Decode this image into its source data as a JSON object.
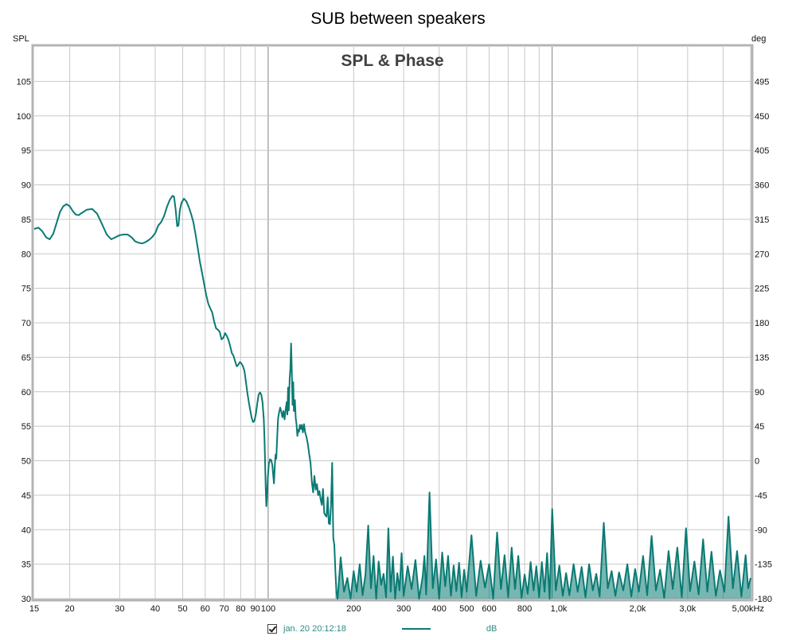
{
  "header": {
    "title": "SUB between speakers"
  },
  "legend": {
    "series_label": "jan. 20 20:12:18",
    "unit": "dB",
    "checked": true
  },
  "colors": {
    "series": "#0a7a73",
    "grid": "#c8c8c8",
    "major_grid": "#808080",
    "frame": "#b4b4b4"
  },
  "chart_data": {
    "type": "line",
    "title": "SPL & Phase",
    "x_scale": "log",
    "xlim": [
      15,
      5000
    ],
    "ylim": [
      30,
      110
    ],
    "y2lim": [
      -180,
      540
    ],
    "ylabel": "SPL",
    "y2label": "deg",
    "grid": true,
    "x_tick_labels": [
      {
        "v": 15,
        "t": "15"
      },
      {
        "v": 20,
        "t": "20"
      },
      {
        "v": 30,
        "t": "30"
      },
      {
        "v": 40,
        "t": "40"
      },
      {
        "v": 50,
        "t": "50"
      },
      {
        "v": 60,
        "t": "60"
      },
      {
        "v": 70,
        "t": "70"
      },
      {
        "v": 80,
        "t": "80"
      },
      {
        "v": 90,
        "t": "90"
      },
      {
        "v": 100,
        "t": "100"
      },
      {
        "v": 200,
        "t": "200"
      },
      {
        "v": 300,
        "t": "300"
      },
      {
        "v": 400,
        "t": "400"
      },
      {
        "v": 500,
        "t": "500"
      },
      {
        "v": 600,
        "t": "600"
      },
      {
        "v": 800,
        "t": "800"
      },
      {
        "v": 1000,
        "t": "1,0k"
      },
      {
        "v": 2000,
        "t": "2,0k"
      },
      {
        "v": 3000,
        "t": "3,0k"
      },
      {
        "v": 5000,
        "t": "5,00kHz"
      }
    ],
    "y_ticks": [
      30,
      35,
      40,
      45,
      50,
      55,
      60,
      65,
      70,
      75,
      80,
      85,
      90,
      95,
      100,
      105
    ],
    "y2_ticks": [
      -180,
      -135,
      -90,
      -45,
      0,
      45,
      90,
      135,
      180,
      225,
      270,
      315,
      360,
      405,
      450,
      495
    ],
    "series": [
      {
        "name": "jan. 20 20:12:18",
        "points": [
          [
            15,
            83.6
          ],
          [
            15.5,
            83.8
          ],
          [
            16,
            83.3
          ],
          [
            16.5,
            82.4
          ],
          [
            17,
            82.1
          ],
          [
            17.5,
            82.9
          ],
          [
            18,
            84.5
          ],
          [
            18.5,
            86.1
          ],
          [
            19,
            86.9
          ],
          [
            19.5,
            87.2
          ],
          [
            20,
            86.9
          ],
          [
            20.5,
            86.2
          ],
          [
            21,
            85.7
          ],
          [
            21.5,
            85.6
          ],
          [
            22,
            85.9
          ],
          [
            23,
            86.4
          ],
          [
            24,
            86.5
          ],
          [
            25,
            85.8
          ],
          [
            26,
            84.3
          ],
          [
            27,
            82.8
          ],
          [
            28,
            82.1
          ],
          [
            29,
            82.4
          ],
          [
            30,
            82.7
          ],
          [
            31,
            82.8
          ],
          [
            32,
            82.8
          ],
          [
            33,
            82.4
          ],
          [
            34,
            81.8
          ],
          [
            35,
            81.6
          ],
          [
            36,
            81.5
          ],
          [
            37,
            81.7
          ],
          [
            38,
            82.0
          ],
          [
            39,
            82.4
          ],
          [
            40,
            83.0
          ],
          [
            41,
            84.1
          ],
          [
            42,
            84.6
          ],
          [
            43,
            85.5
          ],
          [
            44,
            86.8
          ],
          [
            45,
            87.8
          ],
          [
            46,
            88.4
          ],
          [
            46.6,
            88.3
          ],
          [
            47.2,
            86.5
          ],
          [
            47.8,
            84.0
          ],
          [
            48.3,
            84.1
          ],
          [
            48.8,
            86.2
          ],
          [
            49.5,
            87.4
          ],
          [
            50.5,
            88.0
          ],
          [
            51.5,
            87.6
          ],
          [
            52.5,
            86.8
          ],
          [
            53.5,
            85.8
          ],
          [
            54.5,
            84.6
          ],
          [
            55.5,
            82.8
          ],
          [
            56.5,
            80.8
          ],
          [
            57.5,
            78.8
          ],
          [
            58.5,
            77.2
          ],
          [
            59.5,
            75.6
          ],
          [
            60.5,
            74.0
          ],
          [
            61.5,
            72.8
          ],
          [
            62.5,
            72.1
          ],
          [
            63.5,
            71.5
          ],
          [
            64.5,
            70.2
          ],
          [
            65.5,
            69.2
          ],
          [
            66.5,
            69.0
          ],
          [
            67.5,
            68.7
          ],
          [
            68.5,
            67.6
          ],
          [
            69.5,
            67.8
          ],
          [
            70.5,
            68.5
          ],
          [
            71.5,
            68.1
          ],
          [
            72.5,
            67.5
          ],
          [
            73.5,
            66.6
          ],
          [
            74.5,
            65.6
          ],
          [
            75.5,
            65.2
          ],
          [
            76.5,
            64.4
          ],
          [
            77.5,
            63.7
          ],
          [
            78.5,
            63.9
          ],
          [
            79.5,
            64.3
          ],
          [
            80.5,
            64.1
          ],
          [
            81.5,
            63.7
          ],
          [
            82.5,
            63.0
          ],
          [
            83.5,
            61.4
          ],
          [
            84.5,
            59.8
          ],
          [
            85.5,
            58.5
          ],
          [
            86.5,
            57.3
          ],
          [
            87.5,
            56.2
          ],
          [
            88.5,
            55.6
          ],
          [
            89.5,
            55.8
          ],
          [
            90.5,
            56.8
          ],
          [
            91.5,
            58.3
          ],
          [
            92.5,
            59.5
          ],
          [
            93.5,
            59.9
          ],
          [
            94.5,
            59.6
          ],
          [
            95.5,
            58.5
          ],
          [
            96.5,
            56.0
          ],
          [
            97,
            53.4
          ],
          [
            97.5,
            50.0
          ],
          [
            98,
            46.0
          ],
          [
            98.5,
            43.4
          ],
          [
            99,
            44.8
          ],
          [
            99.7,
            47.6
          ],
          [
            100.5,
            49.5
          ],
          [
            101.5,
            50.2
          ],
          [
            102.5,
            50.1
          ],
          [
            103.5,
            49.3
          ],
          [
            104.2,
            47.8
          ],
          [
            104.8,
            46.7
          ],
          [
            105.5,
            49.2
          ],
          [
            106.2,
            50.9
          ],
          [
            106.8,
            50.3
          ],
          [
            107.5,
            53.0
          ],
          [
            108.3,
            56.1
          ],
          [
            109.2,
            57.0
          ],
          [
            110.2,
            57.7
          ],
          [
            111.2,
            57.1
          ],
          [
            112.2,
            56.3
          ],
          [
            113.2,
            57.2
          ],
          [
            114.2,
            56.0
          ],
          [
            115.2,
            57.4
          ],
          [
            116.2,
            58.5
          ],
          [
            116.8,
            56.7
          ],
          [
            117.5,
            60.6
          ],
          [
            118.2,
            57.3
          ],
          [
            119,
            61.9
          ],
          [
            119.7,
            63.4
          ],
          [
            120.4,
            67.0
          ],
          [
            121.1,
            63.0
          ],
          [
            121.8,
            58.1
          ],
          [
            122.5,
            61.4
          ],
          [
            123.2,
            57.2
          ],
          [
            124.2,
            58.8
          ],
          [
            125,
            56.2
          ],
          [
            125.8,
            55.3
          ],
          [
            126.7,
            53.6
          ],
          [
            127.5,
            54.5
          ],
          [
            128.4,
            54.2
          ],
          [
            129.3,
            55.2
          ],
          [
            130.3,
            54.6
          ],
          [
            131.4,
            55.2
          ],
          [
            132.5,
            54.1
          ],
          [
            133.7,
            55.3
          ],
          [
            135,
            54.1
          ],
          [
            136.5,
            53.4
          ],
          [
            138,
            52.4
          ],
          [
            139.5,
            50.9
          ],
          [
            141,
            49.7
          ],
          [
            142.5,
            46.9
          ],
          [
            144,
            45.4
          ],
          [
            145.5,
            47.8
          ],
          [
            147,
            45.8
          ],
          [
            148.5,
            46.6
          ],
          [
            150,
            45.0
          ],
          [
            151.5,
            45.6
          ],
          [
            153,
            44.4
          ],
          [
            154.5,
            43.6
          ],
          [
            156,
            45.9
          ],
          [
            157.5,
            42.4
          ],
          [
            159,
            42.1
          ],
          [
            160.5,
            41.9
          ],
          [
            162,
            44.7
          ],
          [
            163.5,
            40.9
          ],
          [
            165,
            40.8
          ],
          [
            166.5,
            43.7
          ],
          [
            168,
            49.7
          ],
          [
            169.5,
            38.8
          ],
          [
            171,
            37.8
          ],
          [
            172.5,
            33.8
          ],
          [
            174,
            30.9
          ],
          [
            175.5,
            30.0
          ],
          [
            180,
            36.0
          ],
          [
            185,
            31.0
          ],
          [
            190,
            33.0
          ],
          [
            195,
            30.0
          ],
          [
            200,
            34.0
          ],
          [
            205,
            31.0
          ],
          [
            210,
            35.0
          ],
          [
            215,
            30.5
          ],
          [
            220,
            33.5
          ],
          [
            225,
            40.6
          ],
          [
            230,
            31.5
          ],
          [
            235,
            36.2
          ],
          [
            240,
            30.0
          ],
          [
            245,
            35.4
          ],
          [
            250,
            32.0
          ],
          [
            255,
            33.6
          ],
          [
            260,
            30.2
          ],
          [
            265,
            40.2
          ],
          [
            270,
            31.0
          ],
          [
            275,
            36.1
          ],
          [
            280,
            30.0
          ],
          [
            285,
            33.7
          ],
          [
            290,
            31.2
          ],
          [
            295,
            36.6
          ],
          [
            300,
            30.4
          ],
          [
            310,
            34.7
          ],
          [
            320,
            31.4
          ],
          [
            330,
            35.6
          ],
          [
            340,
            30.0
          ],
          [
            350,
            33.2
          ],
          [
            355,
            36.2
          ],
          [
            360,
            30.6
          ],
          [
            370,
            45.4
          ],
          [
            380,
            31.5
          ],
          [
            390,
            35.7
          ],
          [
            400,
            30.0
          ],
          [
            410,
            36.7
          ],
          [
            420,
            31.8
          ],
          [
            430,
            36.2
          ],
          [
            440,
            30.4
          ],
          [
            450,
            34.8
          ],
          [
            460,
            31.1
          ],
          [
            470,
            35.2
          ],
          [
            480,
            30.2
          ],
          [
            490,
            34.2
          ],
          [
            500,
            31.0
          ],
          [
            520,
            39.2
          ],
          [
            540,
            30.4
          ],
          [
            560,
            35.5
          ],
          [
            580,
            31.6
          ],
          [
            600,
            35.0
          ],
          [
            620,
            30.0
          ],
          [
            640,
            39.6
          ],
          [
            660,
            31.4
          ],
          [
            680,
            36.3
          ],
          [
            700,
            30.2
          ],
          [
            720,
            37.4
          ],
          [
            740,
            31.4
          ],
          [
            760,
            36.2
          ],
          [
            780,
            30.1
          ],
          [
            800,
            33.5
          ],
          [
            820,
            30.7
          ],
          [
            840,
            35.3
          ],
          [
            860,
            31.2
          ],
          [
            880,
            34.7
          ],
          [
            900,
            30.2
          ],
          [
            920,
            35.3
          ],
          [
            940,
            31.0
          ],
          [
            960,
            36.6
          ],
          [
            980,
            30.0
          ],
          [
            1000,
            43.0
          ],
          [
            1030,
            31.2
          ],
          [
            1060,
            34.8
          ],
          [
            1090,
            30.4
          ],
          [
            1120,
            33.7
          ],
          [
            1150,
            30.5
          ],
          [
            1190,
            35.0
          ],
          [
            1230,
            31.0
          ],
          [
            1270,
            34.6
          ],
          [
            1310,
            30.2
          ],
          [
            1350,
            35.0
          ],
          [
            1390,
            31.2
          ],
          [
            1430,
            33.6
          ],
          [
            1470,
            30.3
          ],
          [
            1520,
            41.0
          ],
          [
            1570,
            31.5
          ],
          [
            1620,
            34.0
          ],
          [
            1670,
            30.4
          ],
          [
            1720,
            33.8
          ],
          [
            1780,
            31.2
          ],
          [
            1840,
            35.0
          ],
          [
            1900,
            30.3
          ],
          [
            1960,
            34.3
          ],
          [
            2020,
            31.0
          ],
          [
            2090,
            36.2
          ],
          [
            2160,
            30.5
          ],
          [
            2240,
            39.1
          ],
          [
            2320,
            31.2
          ],
          [
            2400,
            34.2
          ],
          [
            2480,
            30.1
          ],
          [
            2570,
            36.9
          ],
          [
            2660,
            31.4
          ],
          [
            2760,
            37.4
          ],
          [
            2860,
            30.2
          ],
          [
            2960,
            40.2
          ],
          [
            3060,
            31.1
          ],
          [
            3170,
            35.4
          ],
          [
            3280,
            30.6
          ],
          [
            3400,
            38.6
          ],
          [
            3520,
            31.0
          ],
          [
            3640,
            36.8
          ],
          [
            3770,
            30.4
          ],
          [
            3900,
            34.1
          ],
          [
            4040,
            31.0
          ],
          [
            4180,
            41.9
          ],
          [
            4330,
            31.5
          ],
          [
            4480,
            36.9
          ],
          [
            4640,
            30.3
          ],
          [
            4800,
            36.3
          ],
          [
            4900,
            31.5
          ],
          [
            5000,
            33.0
          ]
        ]
      }
    ]
  }
}
